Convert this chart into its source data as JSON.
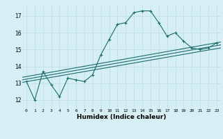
{
  "title": "",
  "xlabel": "Humidex (Indice chaleur)",
  "ylabel": "",
  "background_color": "#d6eff5",
  "grid_color": "#b8dde5",
  "line_color": "#1a6b6b",
  "x_ticks": [
    0,
    1,
    2,
    3,
    4,
    5,
    6,
    7,
    8,
    9,
    10,
    11,
    12,
    13,
    14,
    15,
    16,
    17,
    18,
    19,
    20,
    21,
    22,
    23
  ],
  "y_ticks": [
    12,
    13,
    14,
    15,
    16,
    17
  ],
  "ylim": [
    11.5,
    17.7
  ],
  "xlim": [
    -0.5,
    23.5
  ],
  "series1_x": [
    0,
    1,
    2,
    3,
    4,
    5,
    6,
    7,
    8,
    9,
    10,
    11,
    12,
    13,
    14,
    15,
    16,
    17,
    18,
    19,
    20,
    21,
    22,
    23
  ],
  "series1_y": [
    13.1,
    12.0,
    13.7,
    12.9,
    12.2,
    13.3,
    13.2,
    13.1,
    13.5,
    14.7,
    15.6,
    16.5,
    16.6,
    17.2,
    17.3,
    17.3,
    16.6,
    15.8,
    16.0,
    15.5,
    15.1,
    15.0,
    15.1,
    15.4
  ],
  "trend1_start": 13.05,
  "trend1_end": 15.1,
  "trend2_start": 13.2,
  "trend2_end": 15.28,
  "trend3_start": 13.35,
  "trend3_end": 15.45
}
